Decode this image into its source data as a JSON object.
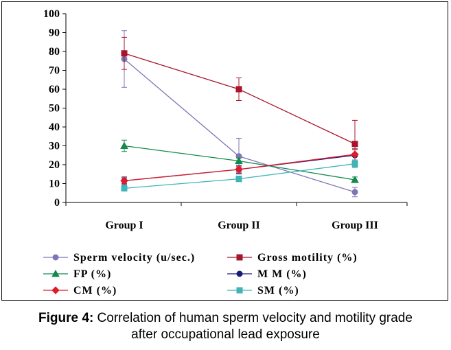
{
  "chart_data": {
    "type": "line",
    "categories": [
      "Group I",
      "Group II",
      "Group III"
    ],
    "ylim": [
      0,
      100
    ],
    "yticks": [
      0,
      10,
      20,
      30,
      40,
      50,
      60,
      70,
      80,
      90,
      100
    ],
    "grid": false,
    "legend_position": "bottom",
    "series": [
      {
        "name": "Sperm velocity (u/sec.)",
        "color": "#8074b6",
        "marker": "circle",
        "values": [
          76,
          24.5,
          5.5
        ],
        "errors": [
          15,
          9.5,
          2.5
        ]
      },
      {
        "name": "Gross motility (%)",
        "color": "#a8142a",
        "marker": "square",
        "values": [
          79,
          60,
          31
        ],
        "errors": [
          8.5,
          6,
          12.5
        ]
      },
      {
        "name": "FP (%)",
        "color": "#138a4c",
        "marker": "triangle",
        "values": [
          30,
          22,
          12
        ],
        "errors": [
          3,
          1.5,
          1.5
        ]
      },
      {
        "name": "M M (%)",
        "color": "#1a1a7a",
        "marker": "circle",
        "values": [
          11.5,
          17.5,
          25
        ],
        "errors": [
          2,
          2,
          3
        ]
      },
      {
        "name": "CM (%)",
        "color": "#dd1c2a",
        "marker": "diamond",
        "values": [
          11.5,
          17.5,
          25.5
        ],
        "errors": [
          1.5,
          1.5,
          3
        ]
      },
      {
        "name": "SM (%)",
        "color": "#3fb5b7",
        "marker": "square",
        "values": [
          7.5,
          12.5,
          20.5
        ],
        "errors": [
          1.5,
          1.5,
          2
        ]
      }
    ]
  },
  "caption": {
    "label": "Figure 4:",
    "line1": " Correlation of human sperm velocity and motility grade",
    "line2": "after occupational lead exposure"
  }
}
